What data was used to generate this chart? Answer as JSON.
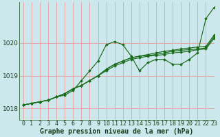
{
  "bg_color": "#cce8ed",
  "grid_color": "#e8a0a0",
  "line_color": "#1a6b1a",
  "marker_color": "#1a6b1a",
  "xlabel": "Graphe pression niveau de la mer (hPa)",
  "xlabel_fontsize": 7,
  "tick_fontsize": 6,
  "xlim": [
    -0.5,
    23
  ],
  "ylim": [
    1017.65,
    1021.25
  ],
  "yticks": [
    1018,
    1019,
    1020
  ],
  "xticks": [
    0,
    1,
    2,
    3,
    4,
    5,
    6,
    7,
    8,
    9,
    10,
    11,
    12,
    13,
    14,
    15,
    16,
    17,
    18,
    19,
    20,
    21,
    22,
    23
  ],
  "series": [
    [
      1018.1,
      1018.15,
      1018.2,
      1018.25,
      1018.35,
      1018.4,
      1018.55,
      1018.85,
      1019.15,
      1019.45,
      1019.95,
      1020.05,
      1019.95,
      1019.6,
      1019.15,
      1019.4,
      1019.5,
      1019.5,
      1019.35,
      1019.35,
      1019.5,
      1019.7,
      1020.75,
      1021.1
    ],
    [
      1018.1,
      1018.15,
      1018.2,
      1018.25,
      1018.35,
      1018.45,
      1018.6,
      1018.7,
      1018.85,
      1019.0,
      1019.2,
      1019.35,
      1019.45,
      1019.55,
      1019.6,
      1019.65,
      1019.7,
      1019.75,
      1019.78,
      1019.82,
      1019.85,
      1019.88,
      1019.9,
      1020.25
    ],
    [
      1018.1,
      1018.15,
      1018.2,
      1018.25,
      1018.35,
      1018.45,
      1018.6,
      1018.7,
      1018.85,
      1019.0,
      1019.2,
      1019.35,
      1019.45,
      1019.55,
      1019.6,
      1019.62,
      1019.65,
      1019.7,
      1019.75,
      1019.78,
      1019.8,
      1019.82,
      1019.85,
      1020.2
    ],
    [
      1018.1,
      1018.15,
      1018.2,
      1018.25,
      1018.35,
      1018.45,
      1018.6,
      1018.7,
      1018.85,
      1019.0,
      1019.15,
      1019.3,
      1019.4,
      1019.5,
      1019.55,
      1019.6,
      1019.62,
      1019.65,
      1019.7,
      1019.72,
      1019.75,
      1019.8,
      1019.82,
      1020.15
    ]
  ]
}
